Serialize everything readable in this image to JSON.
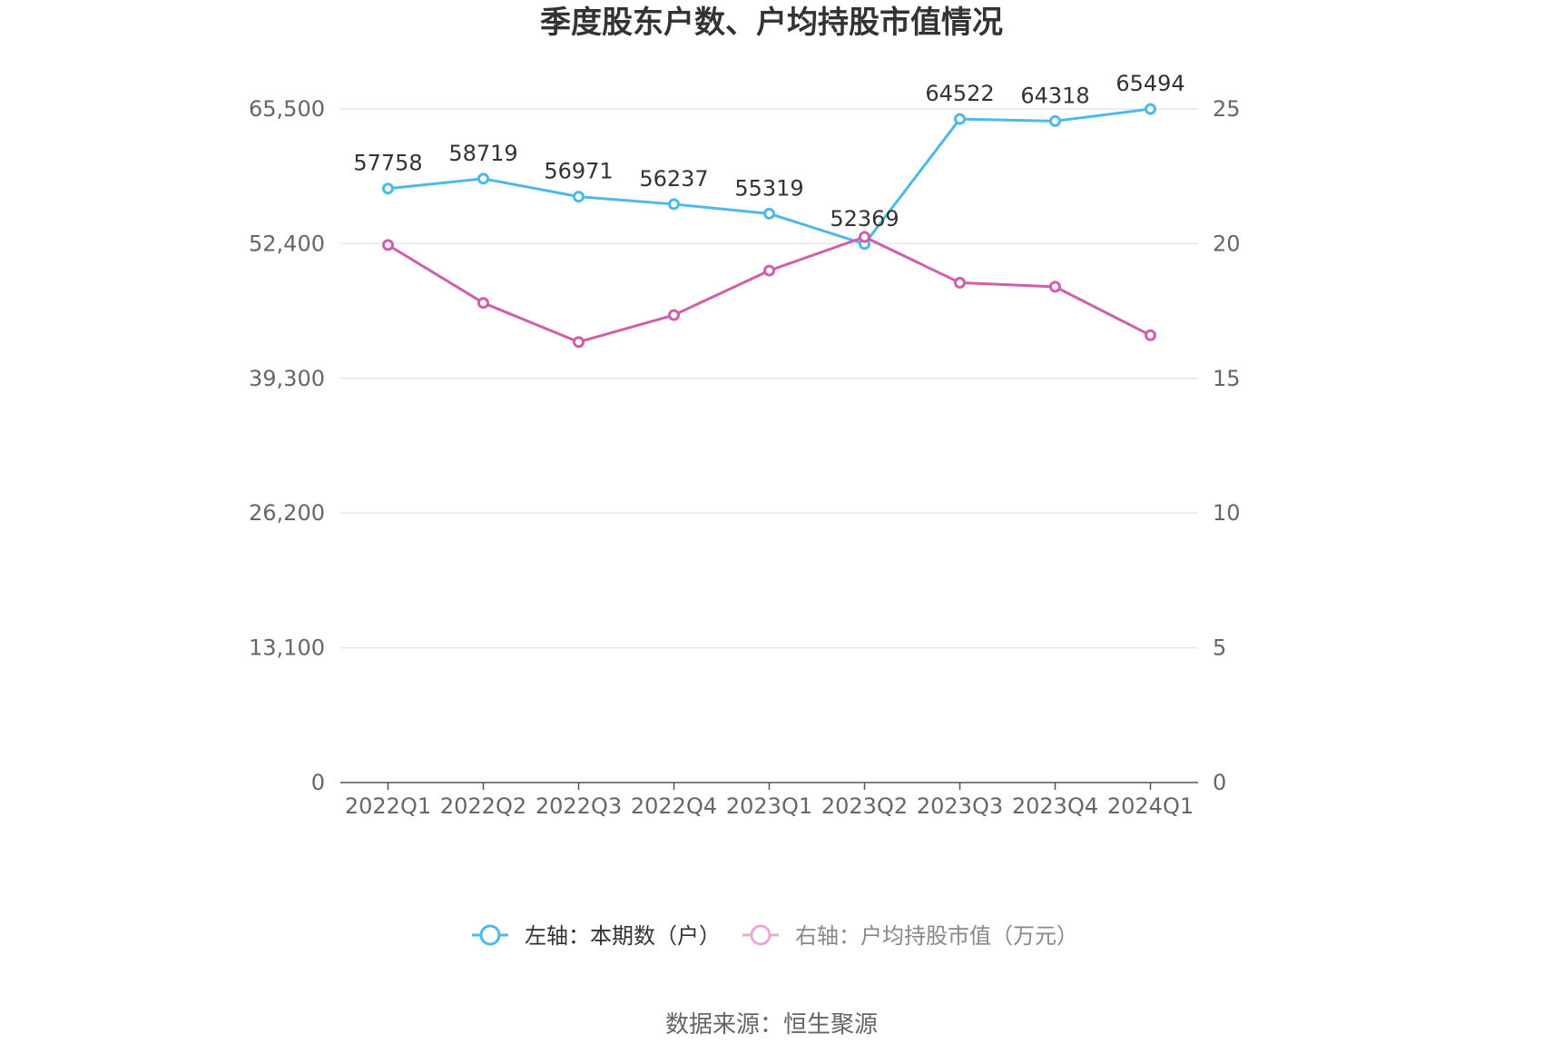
{
  "chart_data": {
    "type": "line",
    "title": "季度股东户数、户均持股市值情况",
    "categories": [
      "2022Q1",
      "2022Q2",
      "2022Q3",
      "2022Q4",
      "2023Q1",
      "2023Q2",
      "2023Q3",
      "2023Q4",
      "2024Q1"
    ],
    "left_axis": {
      "ylim": [
        0,
        65500
      ],
      "ticks": [
        "0",
        "13,100",
        "26,200",
        "39,300",
        "52,400",
        "65,500"
      ]
    },
    "right_axis": {
      "ylim": [
        0,
        25
      ],
      "ticks": [
        "0",
        "5",
        "10",
        "15",
        "20",
        "25"
      ]
    },
    "series": [
      {
        "name": "左轴：本期数（户）",
        "axis": "left",
        "color": "#4db8ec",
        "values": [
          57758,
          58719,
          56971,
          56237,
          55319,
          52369,
          64522,
          64318,
          65494
        ],
        "labels": [
          "57758",
          "58719",
          "56971",
          "56237",
          "55319",
          "52369",
          "64522",
          "64318",
          "65494"
        ]
      },
      {
        "name": "右轴：户均持股市值（万元）",
        "axis": "right",
        "color": "#d05fa9",
        "values": [
          19.95,
          17.8,
          16.35,
          17.35,
          19.0,
          20.25,
          18.55,
          18.4,
          16.6
        ]
      }
    ],
    "grid": true,
    "legend": "bottom"
  },
  "footer": {
    "source": "数据来源：恒生聚源"
  }
}
